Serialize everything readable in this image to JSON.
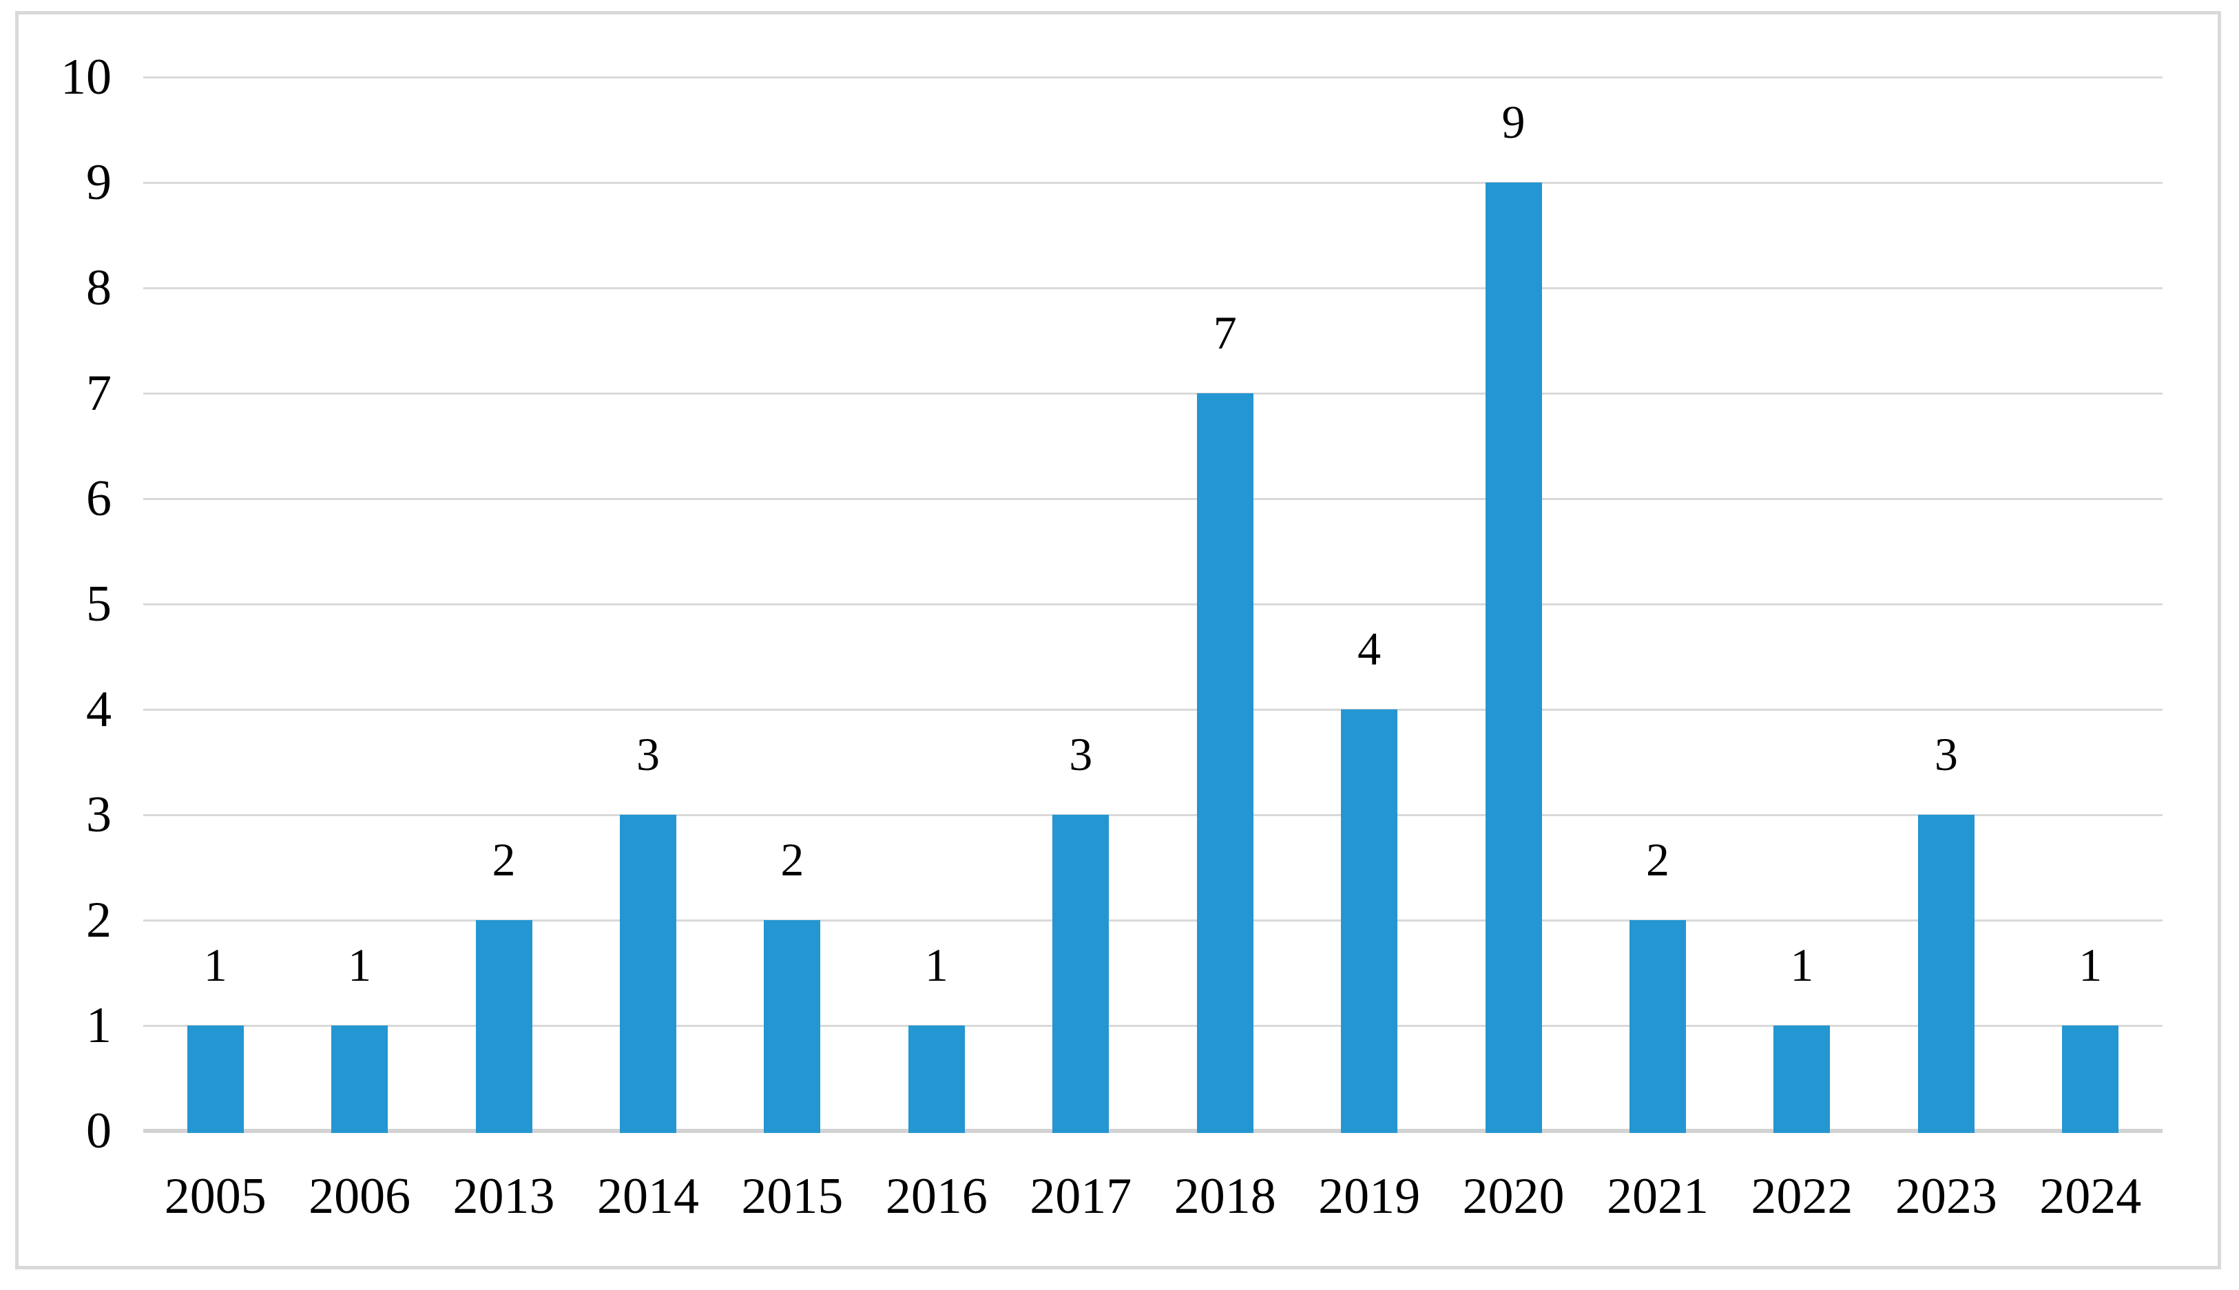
{
  "chart_data": {
    "type": "bar",
    "title": "",
    "xlabel": "",
    "ylabel": "",
    "categories": [
      "2005",
      "2006",
      "2013",
      "2014",
      "2015",
      "2016",
      "2017",
      "2018",
      "2019",
      "2020",
      "2021",
      "2022",
      "2023",
      "2024"
    ],
    "values": [
      1,
      1,
      2,
      3,
      2,
      1,
      3,
      7,
      4,
      9,
      2,
      1,
      3,
      1
    ],
    "ylim": [
      0,
      10
    ],
    "ytick_step": 1,
    "yticks": [
      "0",
      "1",
      "2",
      "3",
      "4",
      "5",
      "6",
      "7",
      "8",
      "9",
      "10"
    ],
    "grid": "horizontal",
    "legend": "none",
    "data_labels": true,
    "colors": {
      "bar": "#2496d2",
      "gridline": "#d9d9d9",
      "axis_baseline": "#d2d2d2",
      "frame_border": "#d9d9d9",
      "text": "#000000",
      "background": "#ffffff"
    }
  }
}
